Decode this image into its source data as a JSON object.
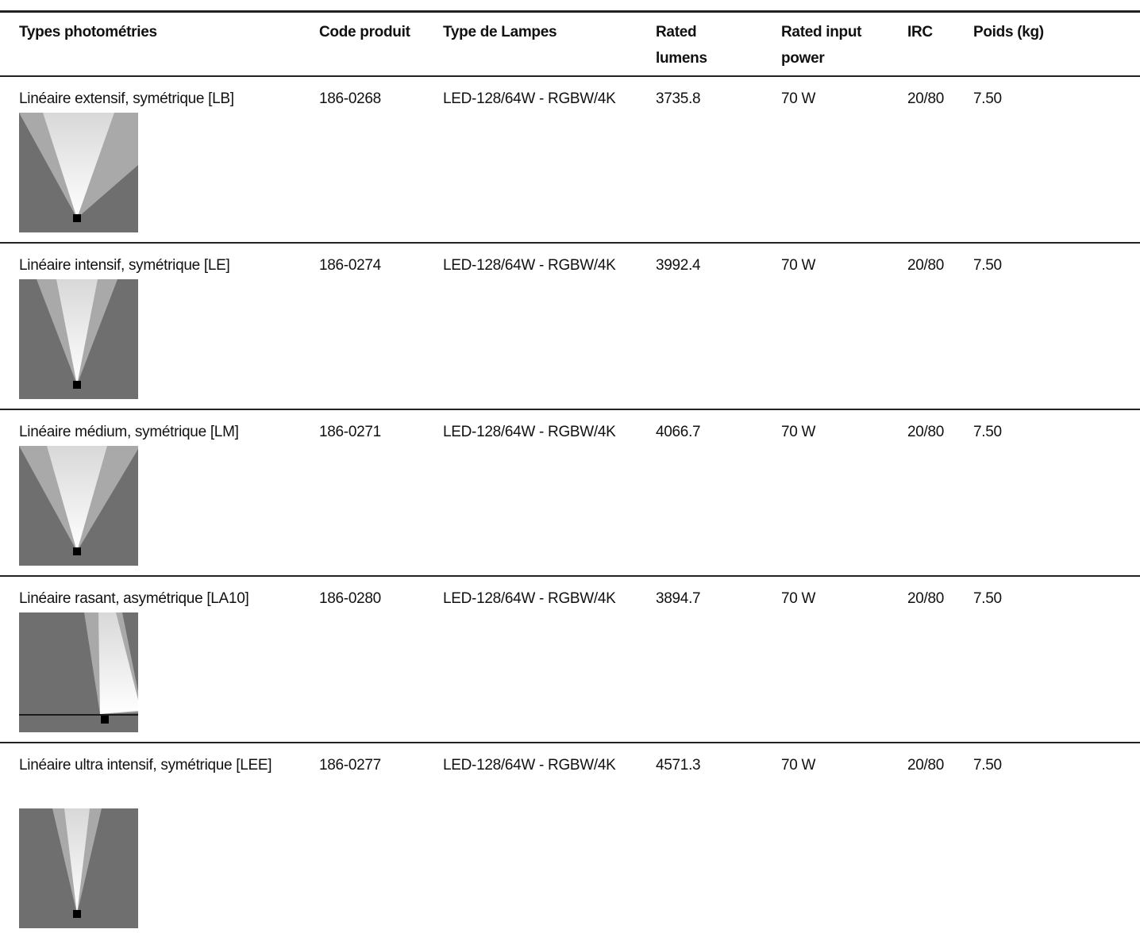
{
  "table": {
    "columns": [
      "Types photométries",
      "Code produit",
      "Type de Lampes",
      "Rated lumens",
      "Rated input power",
      "IRC",
      "Poids (kg)"
    ],
    "rows": [
      [
        "Linéaire extensif, symétrique [LB]",
        "186-0268",
        "LED-128/64W - RGBW/4K",
        "3735.8",
        "70 W",
        "20/80",
        "7.50"
      ],
      [
        "Linéaire intensif, symétrique [LE]",
        "186-0274",
        "LED-128/64W - RGBW/4K",
        "3992.4",
        "70 W",
        "20/80",
        "7.50"
      ],
      [
        "Linéaire médium, symétrique [LM]",
        "186-0271",
        "LED-128/64W - RGBW/4K",
        "4066.7",
        "70 W",
        "20/80",
        "7.50"
      ],
      [
        "Linéaire rasant, asymétrique [LA10]",
        "186-0280",
        "LED-128/64W - RGBW/4K",
        "3894.7",
        "70 W",
        "20/80",
        "7.50"
      ],
      [
        "Linéaire ultra intensif, symétrique [LEE]",
        "186-0277",
        "LED-128/64W - RGBW/4K",
        "4571.3",
        "70 W",
        "20/80",
        "7.50"
      ]
    ]
  }
}
